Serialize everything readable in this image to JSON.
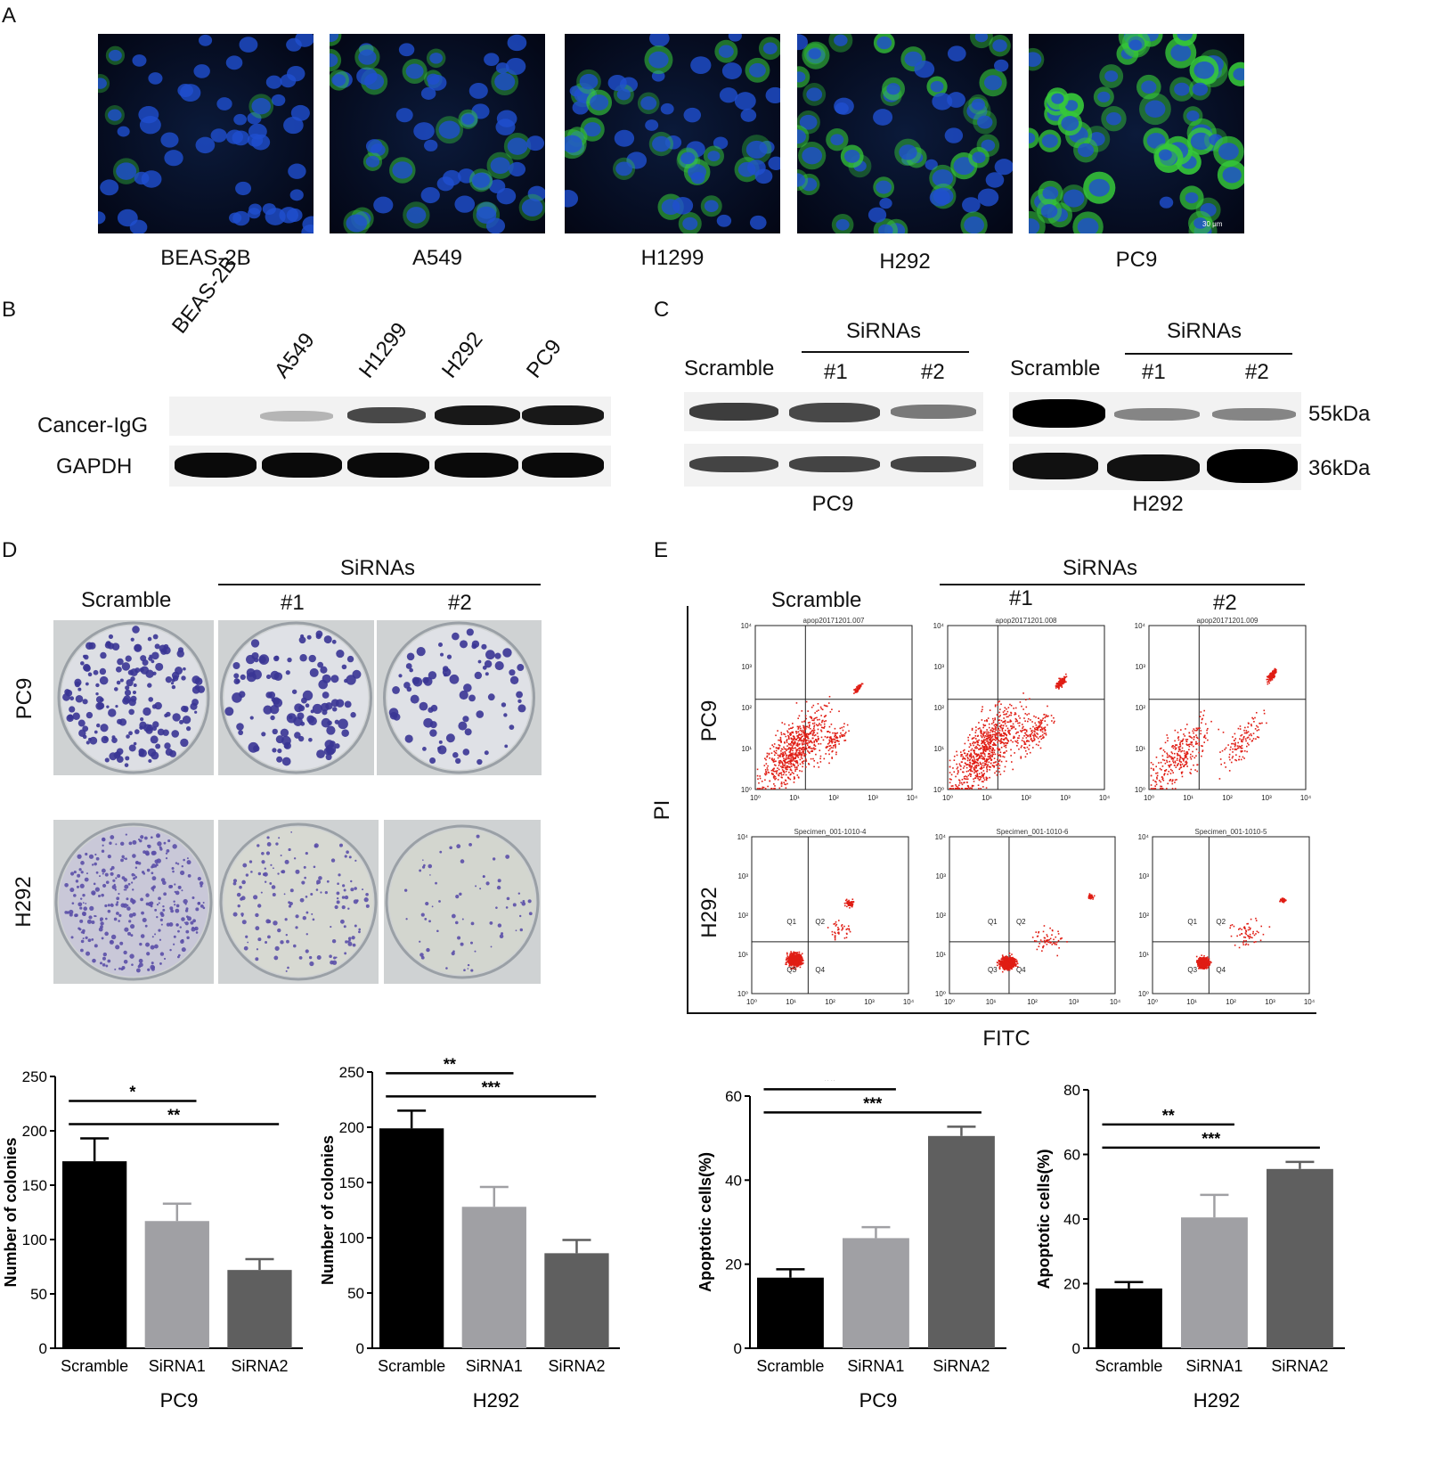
{
  "panels": {
    "a": "A",
    "b": "B",
    "c": "C",
    "d": "D",
    "e": "E"
  },
  "panel_a": {
    "cells": [
      "BEAS-2B",
      "A549",
      "H1299",
      "H292",
      "PC9"
    ],
    "scale": "30 μm"
  },
  "panel_b": {
    "lanes": [
      "BEAS-2B",
      "A549",
      "H1299",
      "H292",
      "PC9"
    ],
    "rows": [
      "Cancer-IgG",
      "GAPDH"
    ]
  },
  "panel_c": {
    "group": "SiRNAs",
    "scramble": "Scramble",
    "si1": "#1",
    "si2": "#2",
    "left_cell": "PC9",
    "right_cell": "H292",
    "mw_top": "55kDa",
    "mw_bottom": "36kDa"
  },
  "panel_d": {
    "group": "SiRNAs",
    "scramble": "Scramble",
    "si1": "#1",
    "si2": "#2",
    "rows": [
      "PC9",
      "H292"
    ]
  },
  "panel_e": {
    "group": "SiRNAs",
    "scramble": "Scramble",
    "si1": "#1",
    "si2": "#2",
    "rows": [
      "PC9",
      "H292"
    ],
    "ylabel": "PI",
    "xlabel": "FITC",
    "quadrants": [
      "Q1",
      "Q2",
      "Q3",
      "Q4"
    ],
    "pc9_titles": [
      "apop20171201.007",
      "apop20171201.008",
      "apop20171201.009"
    ],
    "h292_titles": [
      "Specimen_001-1010-4",
      "Specimen_001-1010-6",
      "Specimen_001-1010-5"
    ],
    "ticks": [
      "10⁰",
      "10¹",
      "10²",
      "10³",
      "10⁴"
    ]
  },
  "chart_data": [
    {
      "type": "bar",
      "categories": [
        "Scramble",
        "SiRNA1",
        "SiRNA2"
      ],
      "values": [
        172,
        117,
        72
      ],
      "errors": [
        21,
        16,
        10
      ],
      "ylim": [
        0,
        250
      ],
      "yticks": [
        0,
        50,
        100,
        150,
        200,
        250
      ],
      "ylabel": "Number of colonies",
      "xlabel": "PC9",
      "colors": [
        "#000000",
        "#a0a0a4",
        "#5f5f5f"
      ],
      "sig": [
        {
          "from": 0,
          "to": 1,
          "label": "*"
        },
        {
          "from": 0,
          "to": 2,
          "label": "**"
        }
      ]
    },
    {
      "type": "bar",
      "categories": [
        "Scramble",
        "SiRNA1",
        "SiRNA2"
      ],
      "values": [
        199,
        128,
        86
      ],
      "errors": [
        16,
        18,
        12
      ],
      "ylim": [
        0,
        250
      ],
      "yticks": [
        0,
        50,
        100,
        150,
        200,
        250
      ],
      "ylabel": "Number of colonies",
      "xlabel": "H292",
      "colors": [
        "#000000",
        "#a0a0a4",
        "#5f5f5f"
      ],
      "sig": [
        {
          "from": 0,
          "to": 1,
          "label": "**"
        },
        {
          "from": 0,
          "to": 2,
          "label": "***"
        }
      ]
    },
    {
      "type": "bar",
      "categories": [
        "Scramble",
        "SiRNA1",
        "SiRNA2"
      ],
      "values": [
        16.8,
        26.2,
        50.5
      ],
      "errors": [
        2,
        2.6,
        2.2
      ],
      "ylim": [
        0,
        60
      ],
      "yticks": [
        0,
        20,
        40,
        60
      ],
      "ylabel": "Apoptotic cells(%)",
      "xlabel": "PC9",
      "colors": [
        "#000000",
        "#a0a0a4",
        "#5f5f5f"
      ],
      "sig": [
        {
          "from": 0,
          "to": 1,
          "label": "**"
        },
        {
          "from": 0,
          "to": 2,
          "label": "***"
        }
      ]
    },
    {
      "type": "bar",
      "categories": [
        "Scramble",
        "SiRNA1",
        "SiRNA2"
      ],
      "values": [
        18.5,
        40.5,
        55.5
      ],
      "errors": [
        2,
        7,
        2.2
      ],
      "ylim": [
        0,
        80
      ],
      "yticks": [
        0,
        20,
        40,
        60,
        80
      ],
      "ylabel": "Apoptotic cells(%)",
      "xlabel": "H292",
      "colors": [
        "#000000",
        "#a0a0a4",
        "#5f5f5f"
      ],
      "sig": [
        {
          "from": 0,
          "to": 1,
          "label": "**"
        },
        {
          "from": 0,
          "to": 2,
          "label": "***"
        }
      ]
    }
  ]
}
